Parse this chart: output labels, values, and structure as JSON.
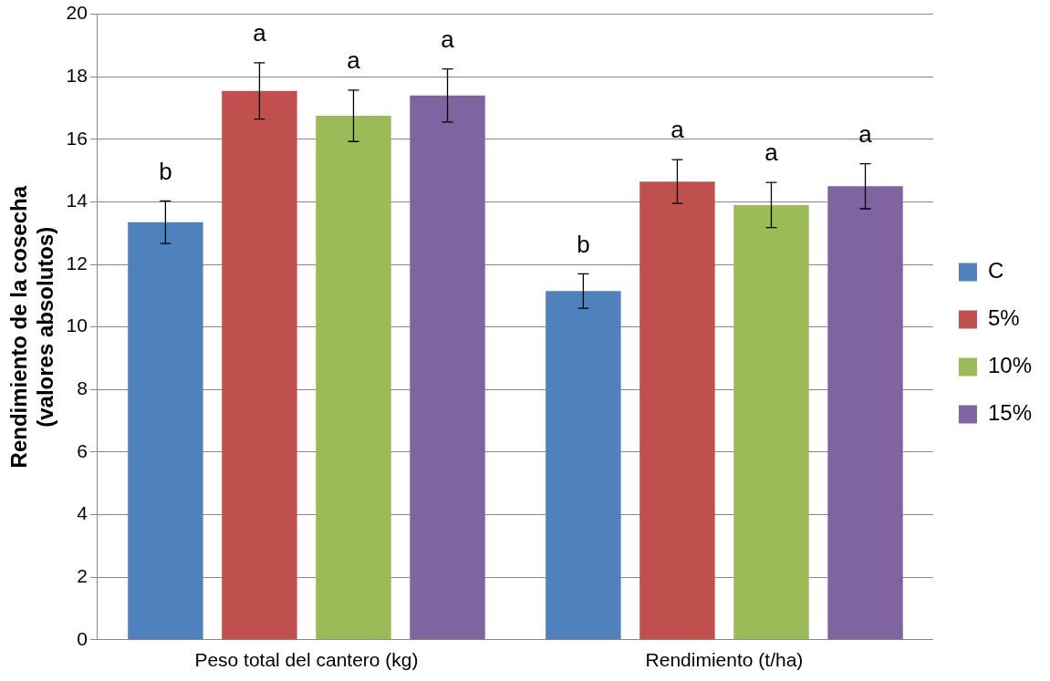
{
  "chart_data": {
    "type": "bar",
    "ylabel": "Rendimiento de la cosecha\n(valores absolutos)",
    "categories": [
      "Peso total del cantero (kg)",
      "Rendimiento (t/ha)"
    ],
    "series": [
      {
        "name": "C",
        "color": "#4f81bd",
        "values": [
          13.35,
          11.15
        ],
        "errors": [
          0.68,
          0.55
        ],
        "value_labels": [
          "b",
          "b"
        ]
      },
      {
        "name": "5%",
        "color": "#c0504d",
        "values": [
          17.55,
          14.65
        ],
        "errors": [
          0.9,
          0.7
        ],
        "value_labels": [
          "a",
          "a"
        ]
      },
      {
        "name": "10%",
        "color": "#9bbb59",
        "values": [
          16.75,
          13.9
        ],
        "errors": [
          0.82,
          0.72
        ],
        "value_labels": [
          "a",
          "a"
        ]
      },
      {
        "name": "15%",
        "color": "#8064a2",
        "values": [
          17.4,
          14.5
        ],
        "errors": [
          0.85,
          0.72
        ],
        "value_labels": [
          "a",
          "a"
        ]
      }
    ],
    "ylim": [
      0,
      20
    ],
    "yticks": [
      0,
      2,
      4,
      6,
      8,
      10,
      12,
      14,
      16,
      18,
      20
    ],
    "grid": "y",
    "legend": "right"
  }
}
